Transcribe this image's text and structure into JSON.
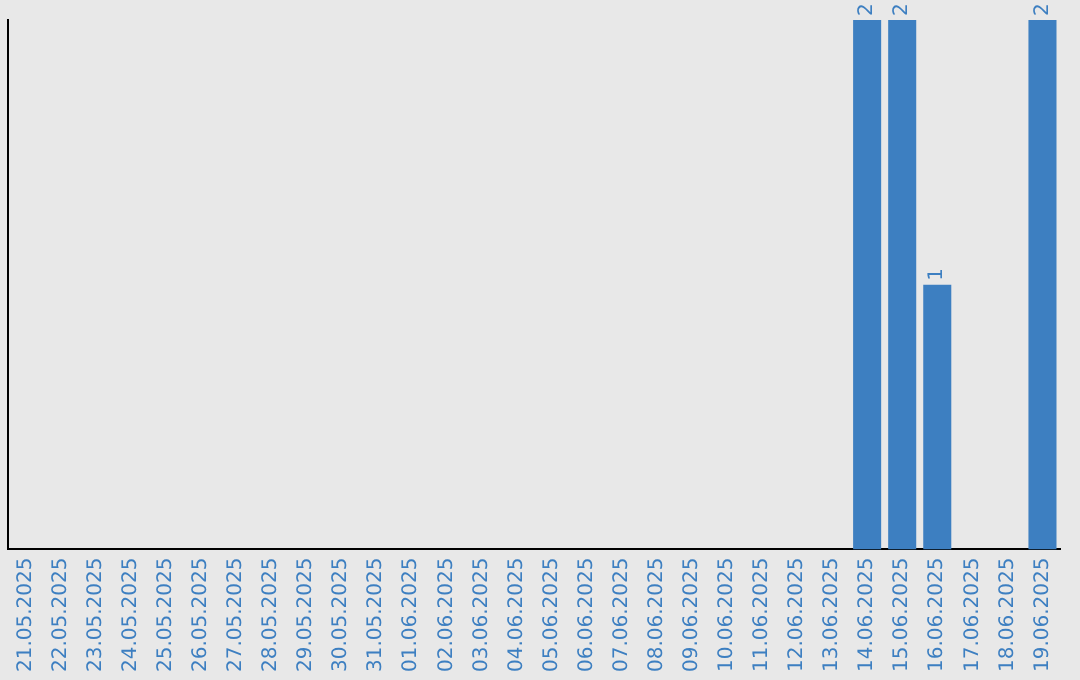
{
  "chart_data": {
    "type": "bar",
    "categories": [
      "21.05.2025",
      "22.05.2025",
      "23.05.2025",
      "24.05.2025",
      "25.05.2025",
      "26.05.2025",
      "27.05.2025",
      "28.05.2025",
      "29.05.2025",
      "30.05.2025",
      "31.05.2025",
      "01.06.2025",
      "02.06.2025",
      "03.06.2025",
      "04.06.2025",
      "05.06.2025",
      "06.06.2025",
      "07.06.2025",
      "08.06.2025",
      "09.06.2025",
      "10.06.2025",
      "11.06.2025",
      "12.06.2025",
      "13.06.2025",
      "14.06.2025",
      "15.06.2025",
      "16.06.2025",
      "17.06.2025",
      "18.06.2025",
      "19.06.2025"
    ],
    "values": [
      null,
      null,
      null,
      null,
      null,
      null,
      null,
      null,
      null,
      null,
      null,
      null,
      null,
      null,
      null,
      null,
      null,
      null,
      null,
      null,
      null,
      null,
      null,
      null,
      2,
      2,
      1,
      null,
      null,
      2
    ],
    "data_labels": true,
    "color": "#3d7fc1",
    "ylim": [
      0,
      2
    ],
    "tick_labels": "x",
    "grid": false,
    "legend": false
  }
}
